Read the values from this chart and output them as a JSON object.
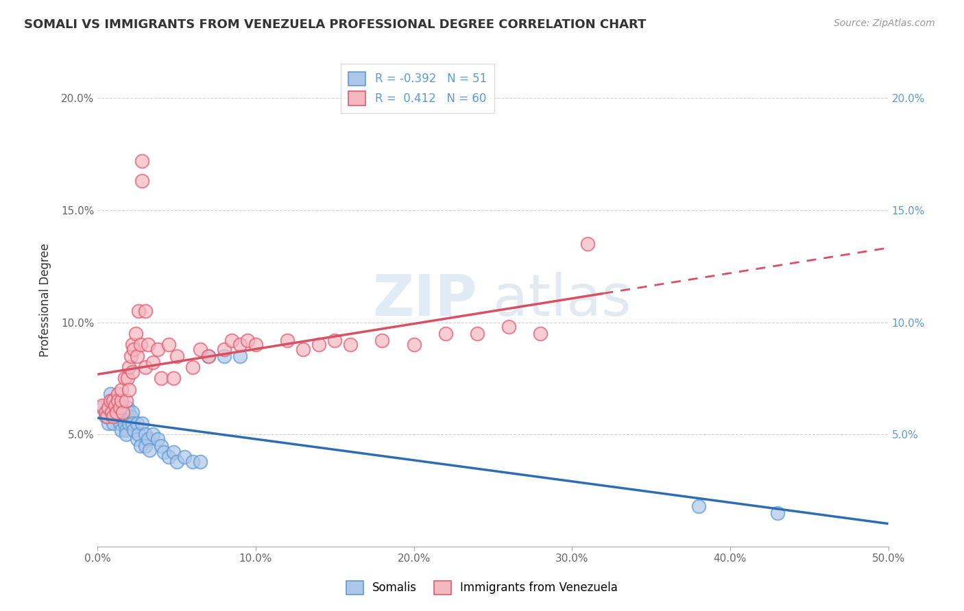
{
  "title": "SOMALI VS IMMIGRANTS FROM VENEZUELA PROFESSIONAL DEGREE CORRELATION CHART",
  "source": "Source: ZipAtlas.com",
  "ylabel_label": "Professional Degree",
  "xlim": [
    0.0,
    0.5
  ],
  "ylim": [
    0.0,
    0.22
  ],
  "xticks": [
    0.0,
    0.1,
    0.2,
    0.3,
    0.4,
    0.5
  ],
  "yticks": [
    0.0,
    0.05,
    0.1,
    0.15,
    0.2
  ],
  "xticklabels": [
    "0.0%",
    "10.0%",
    "20.0%",
    "30.0%",
    "40.0%",
    "50.0%"
  ],
  "yticklabels_left": [
    "",
    "5.0%",
    "10.0%",
    "15.0%",
    "20.0%"
  ],
  "yticklabels_right": [
    "",
    "5.0%",
    "10.0%",
    "15.0%",
    "20.0%"
  ],
  "legend_entry1": {
    "color": "#aec6e8",
    "border": "#5b9bd5",
    "R": "-0.392",
    "N": "51",
    "label": "Somalis"
  },
  "legend_entry2": {
    "color": "#f4b8c1",
    "border": "#e05a6e",
    "R": "0.412",
    "N": "60",
    "label": "Immigrants from Venezuela"
  },
  "somali_color": "#aec6e8",
  "somali_edge_color": "#5b9bd5",
  "somali_line_color": "#2e6db4",
  "venezuela_color": "#f4b8c1",
  "venezuela_edge_color": "#e05a6e",
  "venezuela_line_color": "#d94f63",
  "background_color": "#ffffff",
  "grid_color": "#d0d0d0",
  "somali_points": [
    [
      0.003,
      0.062
    ],
    [
      0.005,
      0.058
    ],
    [
      0.006,
      0.06
    ],
    [
      0.007,
      0.055
    ],
    [
      0.008,
      0.068
    ],
    [
      0.008,
      0.063
    ],
    [
      0.009,
      0.065
    ],
    [
      0.01,
      0.06
    ],
    [
      0.01,
      0.055
    ],
    [
      0.011,
      0.062
    ],
    [
      0.012,
      0.058
    ],
    [
      0.013,
      0.065
    ],
    [
      0.013,
      0.06
    ],
    [
      0.014,
      0.055
    ],
    [
      0.015,
      0.058
    ],
    [
      0.015,
      0.052
    ],
    [
      0.016,
      0.06
    ],
    [
      0.017,
      0.055
    ],
    [
      0.018,
      0.052
    ],
    [
      0.018,
      0.05
    ],
    [
      0.019,
      0.062
    ],
    [
      0.02,
      0.06
    ],
    [
      0.02,
      0.055
    ],
    [
      0.021,
      0.058
    ],
    [
      0.022,
      0.06
    ],
    [
      0.022,
      0.055
    ],
    [
      0.023,
      0.052
    ],
    [
      0.025,
      0.048
    ],
    [
      0.025,
      0.055
    ],
    [
      0.026,
      0.05
    ],
    [
      0.027,
      0.045
    ],
    [
      0.028,
      0.055
    ],
    [
      0.03,
      0.05
    ],
    [
      0.03,
      0.045
    ],
    [
      0.032,
      0.048
    ],
    [
      0.033,
      0.043
    ],
    [
      0.035,
      0.05
    ],
    [
      0.038,
      0.048
    ],
    [
      0.04,
      0.045
    ],
    [
      0.042,
      0.042
    ],
    [
      0.045,
      0.04
    ],
    [
      0.048,
      0.042
    ],
    [
      0.05,
      0.038
    ],
    [
      0.055,
      0.04
    ],
    [
      0.06,
      0.038
    ],
    [
      0.065,
      0.038
    ],
    [
      0.07,
      0.085
    ],
    [
      0.08,
      0.085
    ],
    [
      0.09,
      0.085
    ],
    [
      0.38,
      0.018
    ],
    [
      0.43,
      0.015
    ]
  ],
  "venezuela_points": [
    [
      0.003,
      0.063
    ],
    [
      0.005,
      0.06
    ],
    [
      0.006,
      0.058
    ],
    [
      0.007,
      0.062
    ],
    [
      0.008,
      0.065
    ],
    [
      0.009,
      0.06
    ],
    [
      0.01,
      0.065
    ],
    [
      0.01,
      0.058
    ],
    [
      0.011,
      0.063
    ],
    [
      0.012,
      0.06
    ],
    [
      0.013,
      0.068
    ],
    [
      0.013,
      0.065
    ],
    [
      0.014,
      0.062
    ],
    [
      0.015,
      0.065
    ],
    [
      0.015,
      0.07
    ],
    [
      0.016,
      0.06
    ],
    [
      0.017,
      0.075
    ],
    [
      0.018,
      0.065
    ],
    [
      0.019,
      0.075
    ],
    [
      0.02,
      0.07
    ],
    [
      0.02,
      0.08
    ],
    [
      0.021,
      0.085
    ],
    [
      0.022,
      0.09
    ],
    [
      0.022,
      0.078
    ],
    [
      0.023,
      0.088
    ],
    [
      0.024,
      0.095
    ],
    [
      0.025,
      0.085
    ],
    [
      0.026,
      0.105
    ],
    [
      0.027,
      0.09
    ],
    [
      0.028,
      0.172
    ],
    [
      0.028,
      0.163
    ],
    [
      0.03,
      0.08
    ],
    [
      0.03,
      0.105
    ],
    [
      0.032,
      0.09
    ],
    [
      0.035,
      0.082
    ],
    [
      0.038,
      0.088
    ],
    [
      0.04,
      0.075
    ],
    [
      0.045,
      0.09
    ],
    [
      0.048,
      0.075
    ],
    [
      0.05,
      0.085
    ],
    [
      0.06,
      0.08
    ],
    [
      0.065,
      0.088
    ],
    [
      0.07,
      0.085
    ],
    [
      0.08,
      0.088
    ],
    [
      0.085,
      0.092
    ],
    [
      0.09,
      0.09
    ],
    [
      0.095,
      0.092
    ],
    [
      0.1,
      0.09
    ],
    [
      0.12,
      0.092
    ],
    [
      0.13,
      0.088
    ],
    [
      0.14,
      0.09
    ],
    [
      0.15,
      0.092
    ],
    [
      0.16,
      0.09
    ],
    [
      0.18,
      0.092
    ],
    [
      0.2,
      0.09
    ],
    [
      0.22,
      0.095
    ],
    [
      0.24,
      0.095
    ],
    [
      0.26,
      0.098
    ],
    [
      0.28,
      0.095
    ],
    [
      0.31,
      0.135
    ]
  ]
}
